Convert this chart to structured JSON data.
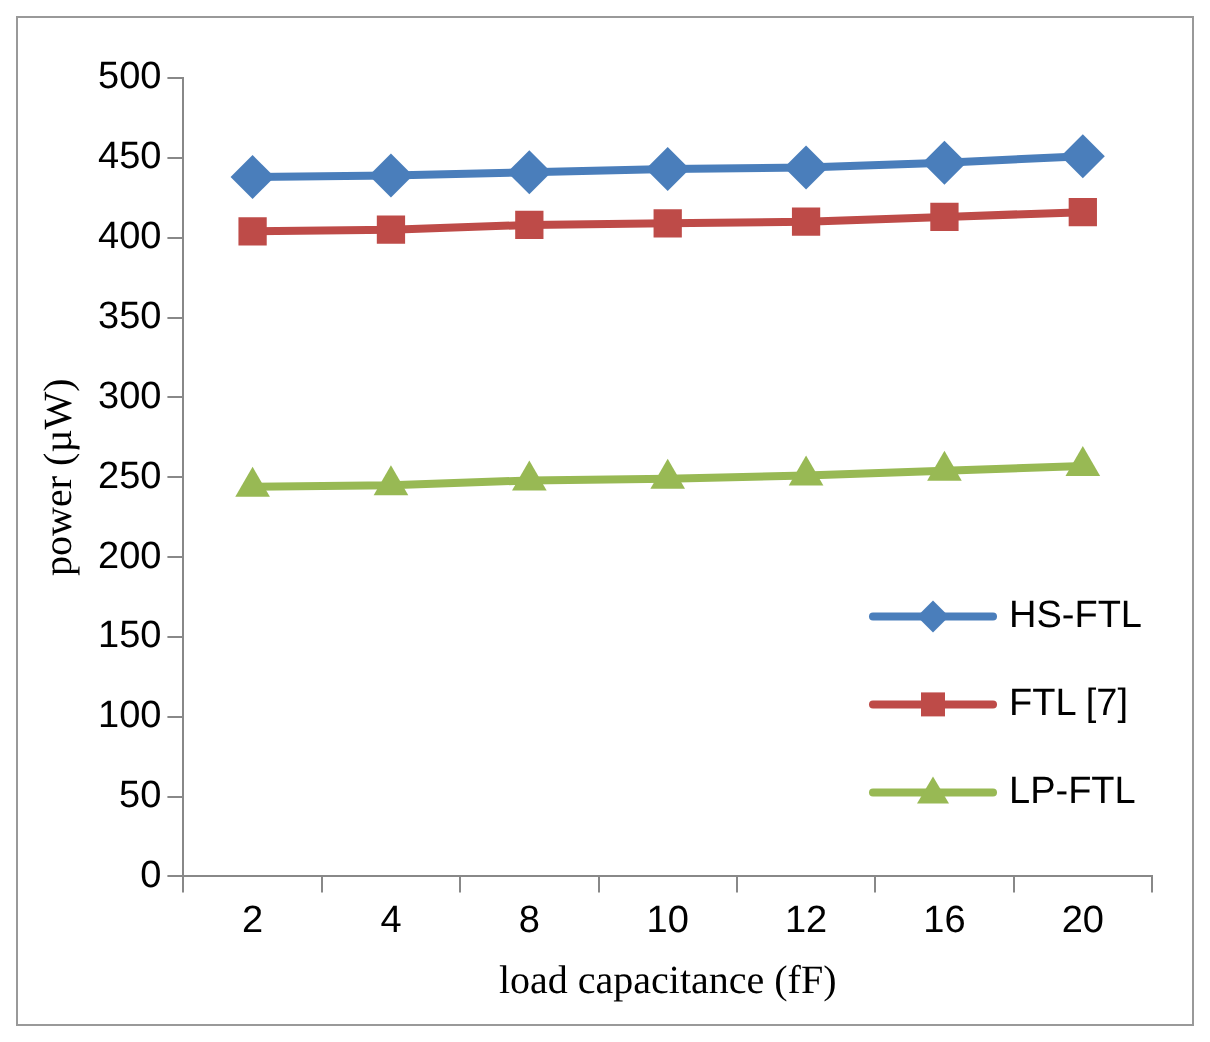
{
  "chart_data": {
    "type": "line",
    "xlabel": "load capacitance (fF)",
    "ylabel": "power (µW)",
    "categories": [
      "2",
      "4",
      "8",
      "10",
      "12",
      "16",
      "20"
    ],
    "series": [
      {
        "name": "HS-FTL",
        "color": "#4a7ebb",
        "marker": "diamond",
        "values": [
          438,
          439,
          441,
          443,
          444,
          447,
          451
        ]
      },
      {
        "name": "FTL [7]",
        "color": "#be4b48",
        "marker": "square",
        "values": [
          404,
          405,
          408,
          409,
          410,
          413,
          416
        ]
      },
      {
        "name": "LP-FTL",
        "color": "#98b954",
        "marker": "triangle",
        "values": [
          244,
          245,
          248,
          249,
          251,
          254,
          257
        ]
      }
    ],
    "ylim": [
      0,
      500
    ],
    "yticks": [
      0,
      50,
      100,
      150,
      200,
      250,
      300,
      350,
      400,
      450,
      500
    ],
    "grid": false,
    "legend": "bottom right"
  }
}
